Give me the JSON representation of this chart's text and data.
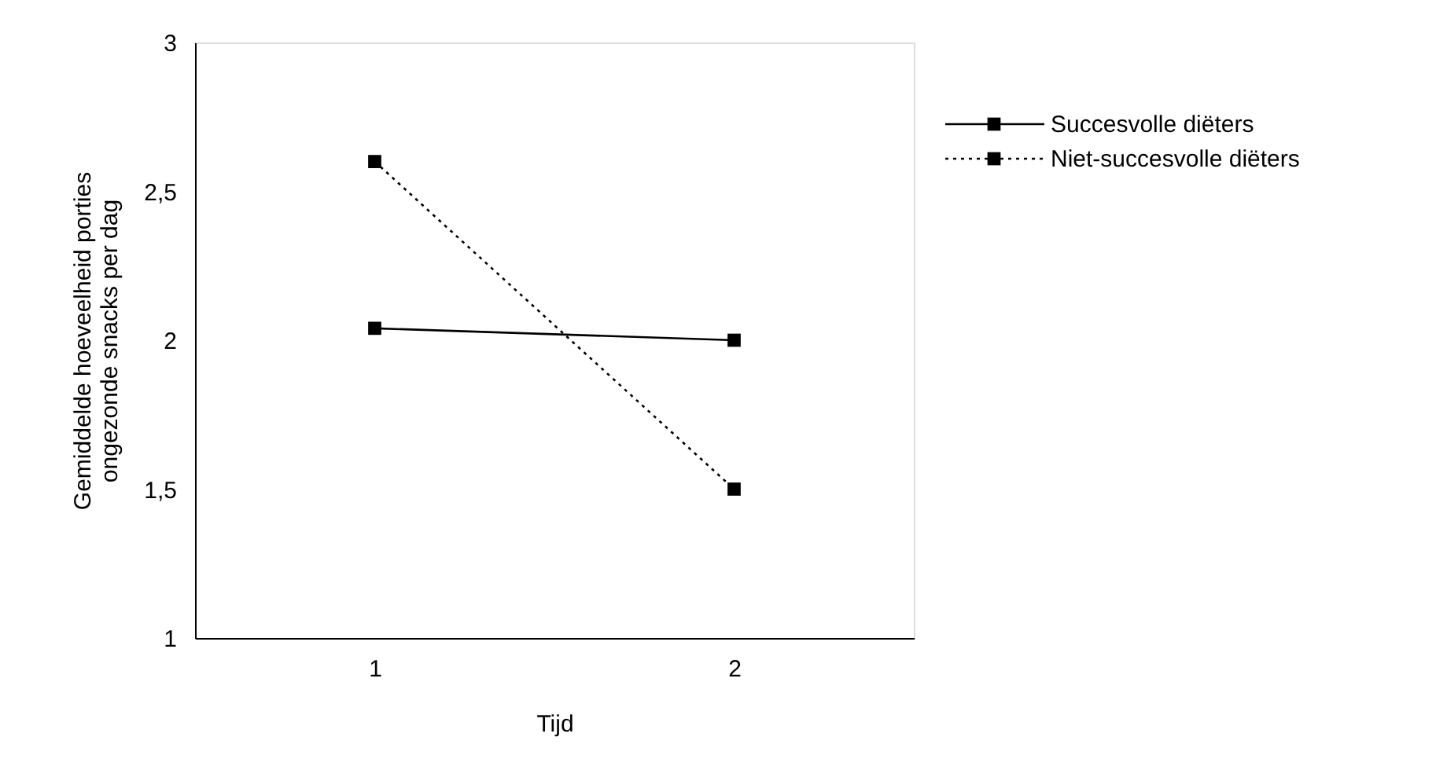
{
  "chart_data": {
    "type": "line",
    "xlabel": "Tijd",
    "ylabel": "Gemiddelde hoeveelheid porties\nongezonde snacks per dag",
    "categories": [
      "1",
      "2"
    ],
    "series": [
      {
        "name": "Succesvolle diëters",
        "color": "#000000",
        "line_style": "solid",
        "values": [
          2.04,
          2.0
        ]
      },
      {
        "name": "Niet-succesvolle diëters",
        "color": "#000000",
        "line_style": "dotted",
        "values": [
          2.6,
          1.5
        ]
      }
    ],
    "ylim": [
      1,
      3
    ],
    "yticks": [
      1,
      {
        "value": 1.5,
        "label": "1,5"
      },
      2,
      {
        "value": 2.5,
        "label": "2,5"
      },
      3
    ],
    "marker": "square",
    "grid": false,
    "legend": "top right"
  }
}
